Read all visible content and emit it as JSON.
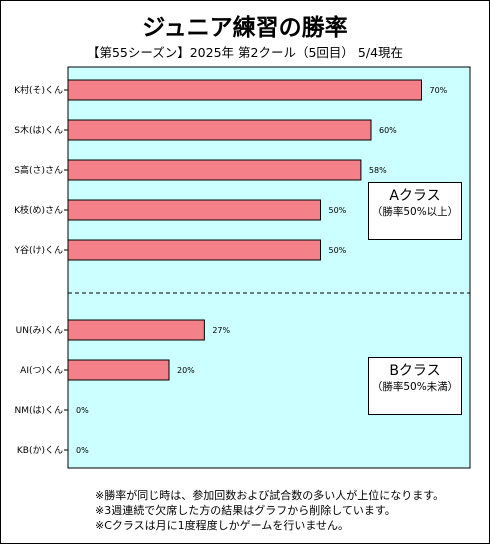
{
  "title": "ジュニア練習の勝率",
  "subtitle": "【第55シーズン】2025年 第2クール（5回目） 5/4現在",
  "chart_data": {
    "type": "bar",
    "orientation": "horizontal",
    "categories": [
      "K村(そ)くん",
      "S木(は)くん",
      "S高(さ)さん",
      "K枝(め)さん",
      "Y谷(け)くん",
      "UN(み)くん",
      "AI(つ)くん",
      "NM(は)くん",
      "KB(か)くん"
    ],
    "values": [
      70,
      60,
      58,
      50,
      50,
      27,
      20,
      0,
      0
    ],
    "value_labels": [
      "70%",
      "60%",
      "58%",
      "50%",
      "50%",
      "27%",
      "20%",
      "0%",
      "0%"
    ],
    "xlim": [
      0,
      100
    ],
    "bar_color": "#f4808a",
    "plot_bg": "#ccffff",
    "grid": false
  },
  "class_a": {
    "name": "Aクラス",
    "desc": "（勝率50%以上）"
  },
  "class_b": {
    "name": "Bクラス",
    "desc": "（勝率50%未満）"
  },
  "notes": [
    "※勝率が同じ時は、参加回数および試合数の多い人が上位になります。",
    "※3週連続で欠席した方の結果はグラフから削除しています。",
    "※Cクラスは月に1度程度しかゲームを行いません。"
  ]
}
